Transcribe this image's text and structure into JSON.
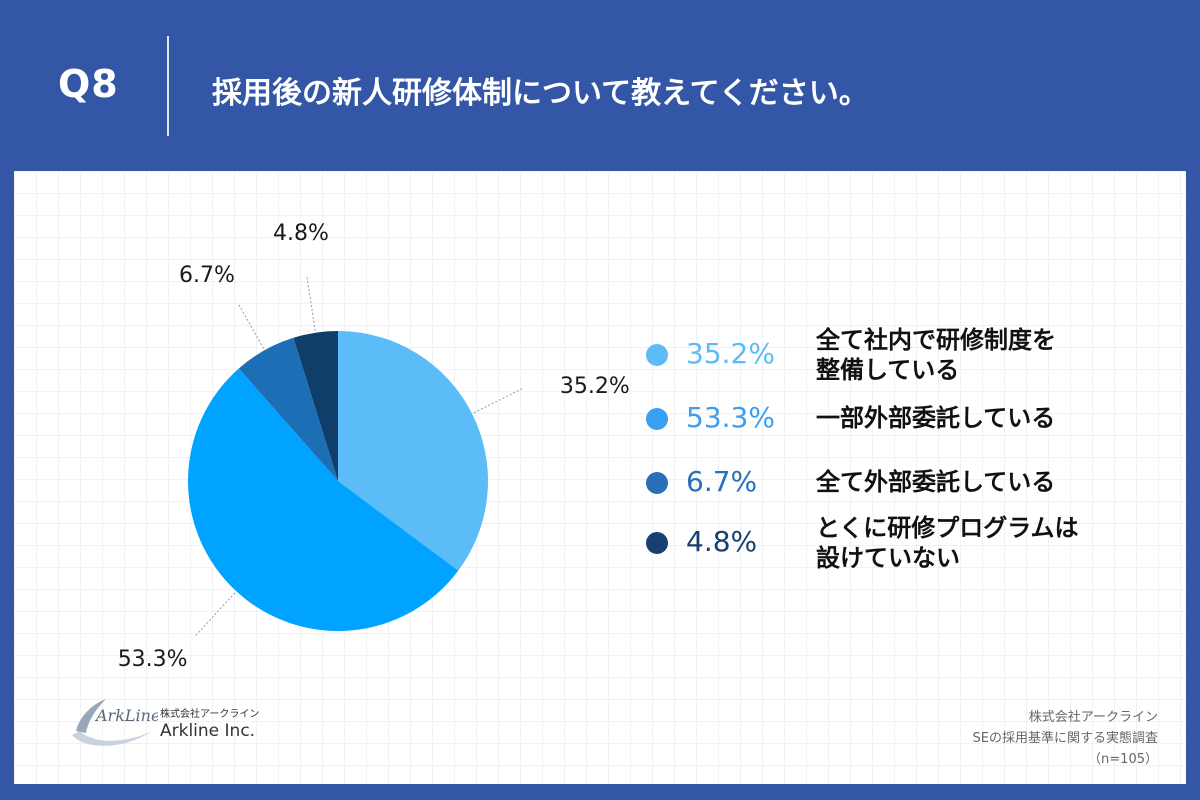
{
  "header": {
    "q_label": "Q8",
    "question": "採用後の新人研修体制について教えてください。"
  },
  "chart_data": {
    "type": "pie",
    "title": "",
    "categories": [
      "全て社内で研修制度を整備している",
      "一部外部委託している",
      "全て外部委託している",
      "とくに研修プログラムは設けていない"
    ],
    "values": [
      35.2,
      53.3,
      6.7,
      4.8
    ],
    "value_labels": [
      "35.2%",
      "53.3%",
      "6.7%",
      "4.8%"
    ],
    "colors": [
      "#5bbcf7",
      "#00a3ff",
      "#1c6fb5",
      "#0f3e6b"
    ],
    "legend_placement": "right",
    "start_angle": "12 o'clock",
    "direction": "clockwise"
  },
  "legend": {
    "items": [
      {
        "value": "35.2%",
        "lines": [
          "全て社内で研修制度を",
          "整備している"
        ],
        "color": "#5bbcf7"
      },
      {
        "value": "53.3%",
        "lines": [
          "一部外部委託している"
        ],
        "color": "#3a9ff0"
      },
      {
        "value": "6.7%",
        "lines": [
          "全て外部委託している"
        ],
        "color": "#2a6fb8"
      },
      {
        "value": "4.8%",
        "lines": [
          "とくに研修プログラムは",
          "設けていない"
        ],
        "color": "#173f70"
      }
    ]
  },
  "logo": {
    "mark_text": "ArkLine",
    "company_jp": "株式会社アークライン",
    "company_en": "Arkline Inc."
  },
  "source": {
    "company": "株式会社アークライン",
    "survey": "SEの採用基準に関する実態調査",
    "sample": "（n=105）"
  }
}
